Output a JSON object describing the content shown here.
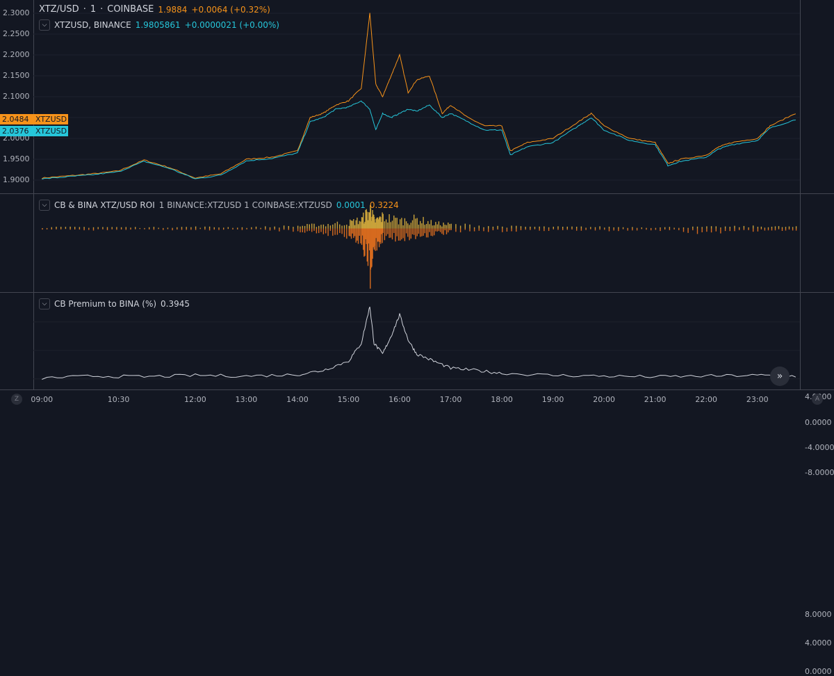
{
  "main_pane": {
    "title": {
      "symbol": "XTZ/USD",
      "interval": "1",
      "exchange": "COINBASE",
      "value": "1.9884",
      "change": "+0.0064 (+0.32%)"
    },
    "compare": {
      "symbol": "XTZUSD, BINANCE",
      "value": "1.9805861",
      "change": "+0.0000021 (+0.00%)"
    },
    "price_tags": [
      {
        "label": "XTZUSD",
        "value": "2.0484",
        "color": "#f7931a"
      },
      {
        "label": "XTZUSD",
        "value": "2.0376",
        "color": "#26c6da"
      }
    ]
  },
  "roi_pane": {
    "name": "CB & BINA XTZ/USD ROI",
    "params": "1 BINANCE:XTZUSD 1 COINBASE:XTZUSD",
    "value1": "0.0001",
    "value2": "0.3224"
  },
  "premium_pane": {
    "name": "CB Premium to BINA (%)",
    "value": "0.3945"
  },
  "bottom": {
    "left_btn": "Z",
    "right_btn": "A"
  },
  "colors": {
    "coinbase": "#f7931a",
    "binance": "#26c6da",
    "premium": "#d1d4dc",
    "background": "#131722",
    "grid": "#434651"
  },
  "chart_data": [
    {
      "type": "line",
      "title": "XTZ/USD · 1 · COINBASE",
      "x": [
        "09:00",
        "09:30",
        "10:00",
        "10:30",
        "11:00",
        "11:30",
        "12:00",
        "12:30",
        "13:00",
        "13:30",
        "14:00",
        "14:15",
        "14:30",
        "14:45",
        "15:00",
        "15:15",
        "15:25",
        "15:32",
        "15:40",
        "15:50",
        "16:00",
        "16:10",
        "16:20",
        "16:35",
        "16:50",
        "17:00",
        "17:20",
        "17:40",
        "18:00",
        "18:10",
        "18:30",
        "19:00",
        "19:30",
        "19:45",
        "20:00",
        "20:30",
        "21:00",
        "21:15",
        "21:30",
        "22:00",
        "22:15",
        "22:30",
        "23:00",
        "23:15",
        "23:45"
      ],
      "series": [
        {
          "name": "XTZ/USD, COINBASE",
          "values": [
            1.905,
            1.91,
            1.915,
            1.922,
            1.948,
            1.93,
            1.905,
            1.915,
            1.95,
            1.955,
            1.97,
            2.05,
            2.06,
            2.08,
            2.09,
            2.12,
            2.3,
            2.13,
            2.1,
            2.15,
            2.2,
            2.11,
            2.14,
            2.15,
            2.06,
            2.08,
            2.05,
            2.03,
            2.03,
            1.97,
            1.99,
            2.0,
            2.04,
            2.06,
            2.03,
            2.0,
            1.99,
            1.94,
            1.95,
            1.96,
            1.98,
            1.99,
            2.0,
            2.03,
            2.06
          ]
        },
        {
          "name": "XTZUSD, BINANCE",
          "values": [
            1.903,
            1.908,
            1.913,
            1.92,
            1.945,
            1.928,
            1.903,
            1.912,
            1.946,
            1.952,
            1.965,
            2.04,
            2.05,
            2.07,
            2.075,
            2.09,
            2.07,
            2.02,
            2.06,
            2.05,
            2.06,
            2.07,
            2.065,
            2.08,
            2.05,
            2.06,
            2.04,
            2.02,
            2.02,
            1.96,
            1.98,
            1.99,
            2.03,
            2.05,
            2.02,
            1.995,
            1.985,
            1.935,
            1.945,
            1.955,
            1.975,
            1.985,
            1.995,
            2.025,
            2.045
          ]
        }
      ],
      "yticks": [
        "1.9000",
        "1.9500",
        "2.0000",
        "2.0500",
        "2.1000",
        "2.1500",
        "2.2000",
        "2.2500",
        "2.3000"
      ],
      "ylim": [
        1.885,
        2.315
      ]
    },
    {
      "type": "bar",
      "title": "CB & BINA XTZ/USD ROI",
      "x": [
        "09:00",
        "10:00",
        "11:00",
        "12:00",
        "13:00",
        "14:00",
        "14:30",
        "15:00",
        "15:15",
        "15:25",
        "15:30",
        "15:40",
        "16:00",
        "16:20",
        "16:40",
        "17:00",
        "18:00",
        "19:00",
        "20:00",
        "21:00",
        "22:00",
        "23:00",
        "23:45"
      ],
      "series": [
        {
          "name": "BINANCE:XTZUSD",
          "values": [
            0.2,
            0.3,
            0.2,
            0.3,
            0.2,
            0.5,
            0.8,
            1.2,
            1.8,
            3.8,
            1.5,
            2.4,
            1.6,
            1.9,
            1.0,
            0.8,
            0.4,
            0.3,
            0.3,
            0.2,
            0.3,
            0.4,
            0.3
          ]
        },
        {
          "name": "COINBASE:XTZUSD",
          "values": [
            -0.2,
            -0.3,
            -0.2,
            -0.3,
            -0.2,
            -0.5,
            -0.9,
            -1.4,
            -2.5,
            -8.8,
            -3.6,
            -1.8,
            -1.9,
            -1.6,
            -1.0,
            -0.8,
            -0.5,
            -0.3,
            -0.4,
            -0.3,
            -0.9,
            -0.4,
            -0.3
          ]
        }
      ],
      "yticks": [
        "4.0000",
        "0.0000",
        "-4.0000",
        "-8.0000"
      ],
      "ylim": [
        -9.5,
        5.0
      ]
    },
    {
      "type": "line",
      "title": "CB Premium to BINA (%)",
      "x": [
        "09:00",
        "10:00",
        "11:00",
        "12:00",
        "13:00",
        "14:00",
        "14:30",
        "15:00",
        "15:15",
        "15:25",
        "15:30",
        "15:40",
        "15:50",
        "16:00",
        "16:10",
        "16:20",
        "16:40",
        "17:00",
        "17:30",
        "18:00",
        "19:00",
        "20:00",
        "21:00",
        "22:00",
        "23:00",
        "23:45"
      ],
      "series": [
        {
          "name": "CB Premium to BINA (%)",
          "values": [
            0.1,
            0.4,
            0.3,
            0.5,
            0.4,
            0.6,
            1.2,
            2.5,
            5.0,
            10.2,
            5.0,
            3.5,
            6.0,
            9.0,
            5.5,
            3.5,
            2.5,
            1.5,
            1.2,
            0.8,
            0.5,
            0.4,
            0.3,
            0.4,
            0.5,
            0.4
          ]
        }
      ],
      "yticks": [
        "8.0000",
        "4.0000",
        "0.0000"
      ],
      "ylim": [
        -0.8,
        11.5
      ]
    }
  ],
  "time_axis": [
    "09:00",
    "10:30",
    "12:00",
    "13:00",
    "14:00",
    "15:00",
    "16:00",
    "17:00",
    "18:00",
    "19:00",
    "20:00",
    "21:00",
    "22:00",
    "23:00"
  ]
}
